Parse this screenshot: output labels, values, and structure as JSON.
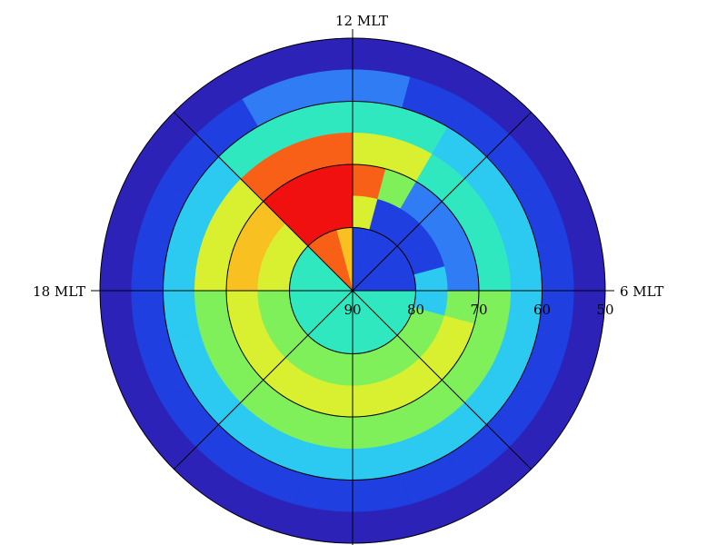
{
  "chart_data": {
    "type": "polar-heatmap",
    "mlt_ticks": [
      {
        "value": 12,
        "label": "12 MLT"
      },
      {
        "value": 18,
        "label": "18 MLT"
      },
      {
        "value": 6,
        "label": "6 MLT"
      }
    ],
    "mlt_gridlines": [
      0,
      3,
      6,
      9,
      12,
      15,
      18,
      21
    ],
    "rlim": [
      90,
      50
    ],
    "rticks": [
      90,
      80,
      70,
      60,
      50
    ],
    "rgrid": [
      80,
      70,
      60
    ],
    "lat_bins": [
      50,
      55,
      60,
      65,
      70,
      75,
      80,
      90
    ],
    "mlt_bins": [
      0,
      1,
      2,
      3,
      4,
      5,
      6,
      7,
      8,
      9,
      10,
      11,
      12,
      13,
      14,
      15,
      16,
      17,
      18,
      19,
      20,
      21,
      22,
      23,
      24
    ],
    "colors": [
      "#1a0f8f",
      "#2d22b8",
      "#1f3fe0",
      "#2f7cf5",
      "#2cc9f0",
      "#30e8c0",
      "#7ff05a",
      "#d8f030",
      "#f8c020",
      "#f86018",
      "#f01010"
    ],
    "values": [
      [
        1,
        1,
        1,
        1,
        1,
        1,
        1,
        1,
        1,
        1,
        1,
        1,
        1,
        1,
        1,
        1,
        1,
        1,
        1,
        1,
        1,
        1,
        1,
        1
      ],
      [
        2,
        2,
        2,
        2,
        2,
        2,
        2,
        2,
        2,
        2,
        2,
        3,
        3,
        3,
        2,
        2,
        2,
        2,
        2,
        2,
        2,
        2,
        2,
        2
      ],
      [
        4,
        4,
        4,
        4,
        4,
        4,
        4,
        4,
        4,
        4,
        5,
        5,
        5,
        5,
        5,
        4,
        4,
        4,
        4,
        4,
        4,
        4,
        4,
        4
      ],
      [
        6,
        6,
        6,
        6,
        6,
        6,
        5,
        5,
        5,
        5,
        7,
        7,
        9,
        9,
        9,
        7,
        7,
        7,
        6,
        6,
        6,
        6,
        6,
        6
      ],
      [
        7,
        7,
        7,
        7,
        7,
        6,
        3,
        3,
        3,
        3,
        6,
        9,
        10,
        10,
        10,
        8,
        8,
        8,
        7,
        7,
        7,
        7,
        7,
        7
      ],
      [
        6,
        6,
        6,
        6,
        6,
        4,
        4,
        2,
        2,
        2,
        2,
        7,
        10,
        10,
        10,
        7,
        7,
        7,
        6,
        6,
        6,
        6,
        6,
        6
      ],
      [
        5,
        5,
        5,
        5,
        5,
        5,
        2,
        2,
        2,
        2,
        2,
        2,
        8,
        9,
        9,
        5,
        5,
        5,
        5,
        5,
        5,
        5,
        5,
        5
      ]
    ]
  }
}
